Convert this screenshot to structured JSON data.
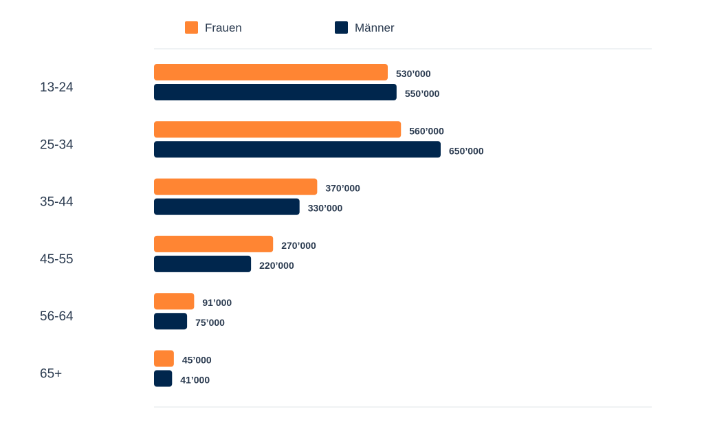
{
  "chart_data": {
    "type": "bar",
    "orientation": "horizontal",
    "categories": [
      "13-24",
      "25-34",
      "35-44",
      "45-55",
      "56-64",
      "65+"
    ],
    "series": [
      {
        "name": "Frauen",
        "color": "#ff8533",
        "values": [
          530000,
          560000,
          370000,
          270000,
          91000,
          45000
        ],
        "labels": [
          "530’000",
          "560’000",
          "370’000",
          "270’000",
          "91’000",
          "45’000"
        ]
      },
      {
        "name": "Männer",
        "color": "#00264d",
        "values": [
          550000,
          650000,
          330000,
          220000,
          75000,
          41000
        ],
        "labels": [
          "550’000",
          "650’000",
          "330’000",
          "220’000",
          "75’000",
          "41’000"
        ]
      }
    ],
    "legend_position": "top",
    "grid": false
  }
}
